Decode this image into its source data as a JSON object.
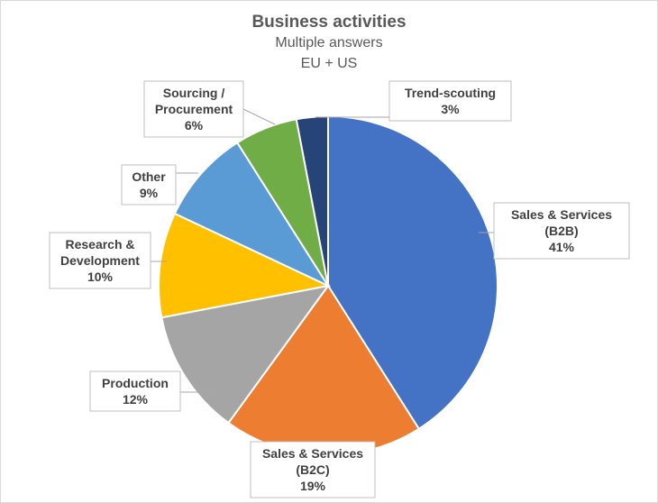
{
  "chart_data": {
    "type": "pie",
    "title": "Business activities",
    "subtitle": "Multiple answers",
    "subtitle2": "EU + US",
    "slices": [
      {
        "label": [
          "Sales & Services",
          "(B2B)"
        ],
        "value": 41,
        "value_label": "41%",
        "color": "#4472c4"
      },
      {
        "label": [
          "Sales & Services",
          "(B2C)"
        ],
        "value": 19,
        "value_label": "19%",
        "color": "#ed7d31"
      },
      {
        "label": [
          "Production"
        ],
        "value": 12,
        "value_label": "12%",
        "color": "#a5a5a5"
      },
      {
        "label": [
          "Research &",
          "Development"
        ],
        "value": 10,
        "value_label": "10%",
        "color": "#ffc000"
      },
      {
        "label": [
          "Other"
        ],
        "value": 9,
        "value_label": "9%",
        "color": "#5b9bd5"
      },
      {
        "label": [
          "Sourcing /",
          "Procurement"
        ],
        "value": 6,
        "value_label": "6%",
        "color": "#70ad47"
      },
      {
        "label": [
          "Trend-scouting"
        ],
        "value": 3,
        "value_label": "3%",
        "color": "#264478"
      }
    ]
  }
}
